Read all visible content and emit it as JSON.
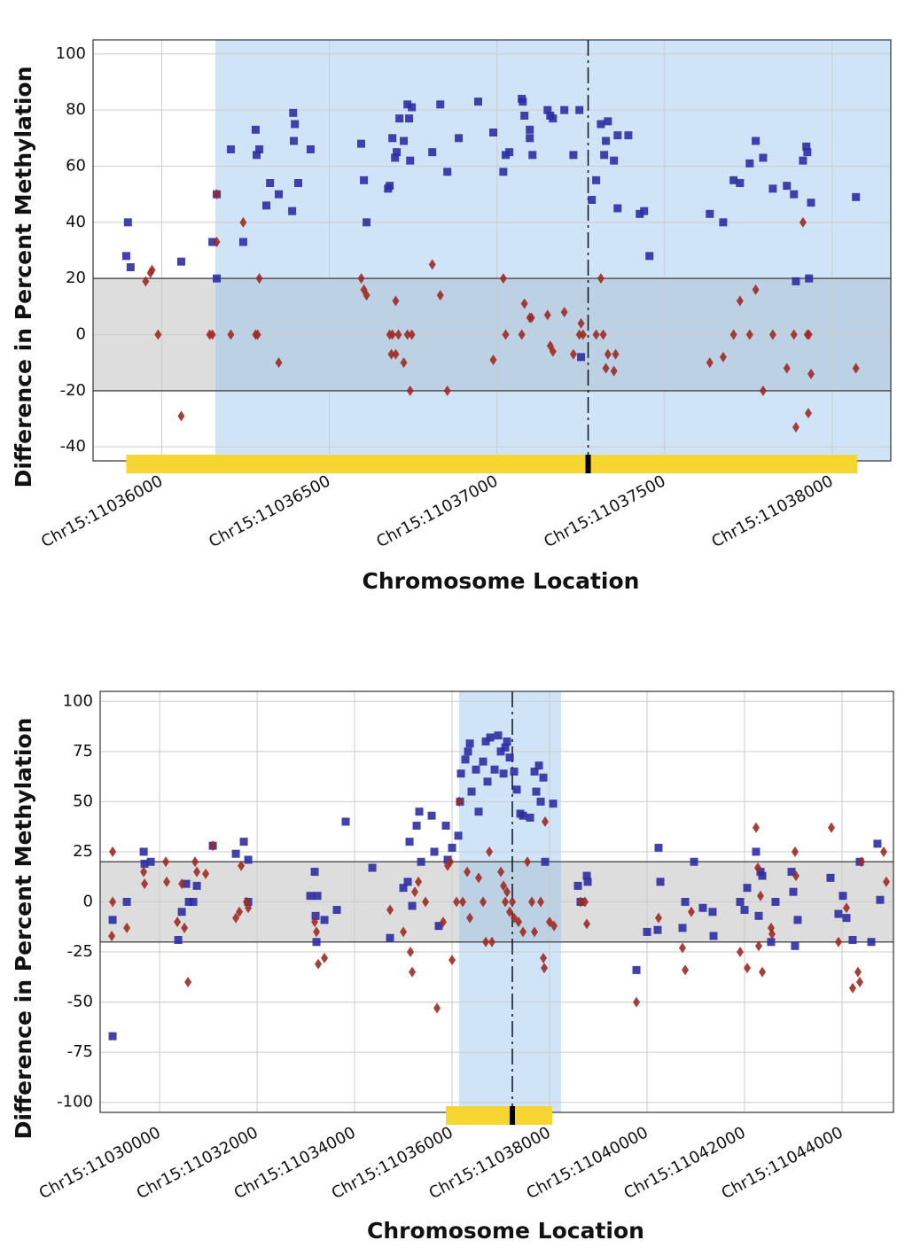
{
  "chart_data": [
    {
      "type": "scatter",
      "x_label": "Chromosome Location",
      "y_label": "Difference in Percent Methylation",
      "xlim": [
        11035795,
        11038175
      ],
      "ylim": [
        -45,
        105
      ],
      "xticks": [
        {
          "value": 11036000,
          "label": "Chr15:11036000"
        },
        {
          "value": 11036500,
          "label": "Chr15:11036500"
        },
        {
          "value": 11037000,
          "label": "Chr15:11037000"
        },
        {
          "value": 11037500,
          "label": "Chr15:11037500"
        },
        {
          "value": 11038000,
          "label": "Chr15:11038000"
        }
      ],
      "yticks": [
        -40,
        -20,
        0,
        20,
        40,
        60,
        80,
        100
      ],
      "grid": true,
      "highlight_xrange": [
        11036160,
        11038175
      ],
      "band_ylim": [
        -20,
        20
      ],
      "marker_x": 11037272,
      "gene_xrange": [
        11035894,
        11038075
      ],
      "series": [
        {
          "color": "#2e2ea3",
          "marker": "square",
          "x": [
            11035899,
            11035894,
            11035907,
            11036058,
            11036151,
            11036164,
            11036164,
            11036206,
            11036243,
            11036280,
            11036283,
            11036291,
            11036312,
            11036323,
            11036349,
            11036389,
            11036392,
            11036397,
            11036394,
            11036407,
            11036444,
            11036595,
            11036603,
            11036611,
            11036675,
            11036680,
            11036688,
            11036696,
            11036701,
            11036709,
            11036722,
            11036733,
            11036741,
            11036746,
            11036738,
            11036807,
            11036831,
            11036852,
            11036886,
            11036944,
            11036989,
            11037019,
            11037026,
            11037037,
            11037074,
            11037077,
            11037082,
            11037098,
            11037098,
            11037106,
            11037151,
            11037159,
            11037167,
            11037201,
            11037228,
            11037246,
            11037283,
            11037296,
            11037310,
            11037320,
            11037331,
            11037325,
            11037349,
            11037360,
            11037360,
            11037392,
            11037426,
            11037439,
            11037455,
            11037635,
            11037675,
            11037706,
            11037725,
            11037754,
            11037772,
            11037794,
            11037823,
            11037865,
            11037886,
            11037892,
            11037913,
            11037923,
            11037926,
            11037931,
            11037937,
            11038071,
            11037251
          ],
          "values": [
            40,
            28,
            24,
            26,
            33,
            50,
            20,
            66,
            33,
            73,
            64,
            66,
            46,
            54,
            50,
            44,
            79,
            75,
            69,
            54,
            66,
            68,
            55,
            40,
            52,
            53,
            70,
            63,
            65,
            77,
            69,
            82,
            62,
            81,
            77,
            65,
            82,
            58,
            70,
            83,
            72,
            58,
            64,
            65,
            84,
            83,
            78,
            73,
            70,
            64,
            80,
            78,
            77,
            80,
            64,
            80,
            48,
            55,
            75,
            64,
            76,
            69,
            62,
            71,
            45,
            71,
            43,
            44,
            28,
            43,
            40,
            55,
            54,
            61,
            69,
            63,
            52,
            53,
            50,
            19,
            62,
            67,
            65,
            20,
            47,
            49,
            -8
          ]
        },
        {
          "color": "#9e2a22",
          "marker": "diamond",
          "x": [
            11035952,
            11035966,
            11035971,
            11035989,
            11036058,
            11036143,
            11036151,
            11036164,
            11036164,
            11036206,
            11036243,
            11036280,
            11036286,
            11036291,
            11036349,
            11036595,
            11036603,
            11036611,
            11036680,
            11036685,
            11036688,
            11036698,
            11036698,
            11036706,
            11036722,
            11036733,
            11036741,
            11036746,
            11036807,
            11036831,
            11036852,
            11036989,
            11037019,
            11037026,
            11037074,
            11037082,
            11037098,
            11037103,
            11037151,
            11037159,
            11037167,
            11037201,
            11037228,
            11037246,
            11037251,
            11037257,
            11037296,
            11037310,
            11037317,
            11037325,
            11037331,
            11037349,
            11037354,
            11037635,
            11037675,
            11037706,
            11037725,
            11037754,
            11037772,
            11037794,
            11037823,
            11037865,
            11037886,
            11037892,
            11037913,
            11037926,
            11037929,
            11037931,
            11037937,
            11038071
          ],
          "values": [
            19,
            22,
            23,
            0,
            -29,
            0,
            0,
            33,
            50,
            0,
            40,
            0,
            0,
            20,
            -10,
            20,
            16,
            14,
            0,
            -7,
            0,
            12,
            -7,
            0,
            -10,
            0,
            -20,
            0,
            25,
            14,
            -20,
            -9,
            20,
            0,
            0,
            11,
            6,
            6,
            7,
            -4,
            -6,
            8,
            -7,
            0,
            4,
            0,
            0,
            20,
            0,
            -12,
            -7,
            -13,
            -7,
            -10,
            -8,
            0,
            12,
            0,
            16,
            -20,
            0,
            -12,
            0,
            -33,
            40,
            0,
            -28,
            0,
            -14,
            -12
          ]
        }
      ]
    },
    {
      "type": "scatter",
      "x_label": "Chromosome Location",
      "y_label": "Difference in Percent Methylation",
      "xlim": [
        11028780,
        11045055
      ],
      "ylim": [
        -105,
        105
      ],
      "xticks": [
        {
          "value": 11030000,
          "label": "Chr15:11030000"
        },
        {
          "value": 11032000,
          "label": "Chr15:11032000"
        },
        {
          "value": 11034000,
          "label": "Chr15:11034000"
        },
        {
          "value": 11036000,
          "label": "Chr15:11036000"
        },
        {
          "value": 11038000,
          "label": "Chr15:11038000"
        },
        {
          "value": 11040000,
          "label": "Chr15:11040000"
        },
        {
          "value": 11042000,
          "label": "Chr15:11042000"
        },
        {
          "value": 11044000,
          "label": "Chr15:11044000"
        }
      ],
      "yticks": [
        -100,
        -75,
        -50,
        -25,
        0,
        25,
        50,
        75,
        100
      ],
      "grid": true,
      "highlight_xrange": [
        11036145,
        11038236
      ],
      "band_ylim": [
        -20,
        20
      ],
      "marker_x": 11037236,
      "gene_xrange": [
        11035873,
        11038055
      ],
      "series": [
        {
          "color": "#2e2ea3",
          "marker": "square",
          "x": [
            11029036,
            11029036,
            11029327,
            11029673,
            11029691,
            11029818,
            11030545,
            11030455,
            11030382,
            11030600,
            11030691,
            11030764,
            11031091,
            11031564,
            11031727,
            11031818,
            11031818,
            11033091,
            11033182,
            11033200,
            11033218,
            11033236,
            11033382,
            11033636,
            11033818,
            11034364,
            11034727,
            11035000,
            11035091,
            11035127,
            11035182,
            11035273,
            11035327,
            11035364,
            11035582,
            11035636,
            11035727,
            11035873,
            11035909,
            11036000,
            11036127,
            11036164,
            11036182,
            11036273,
            11036327,
            11036364,
            11036400,
            11036491,
            11036545,
            11036636,
            11036691,
            11036727,
            11036782,
            11036873,
            11036945,
            11037000,
            11037055,
            11037091,
            11037127,
            11037182,
            11037273,
            11037327,
            11037400,
            11037455,
            11037600,
            11037691,
            11037727,
            11037782,
            11037818,
            11037873,
            11037909,
            11038073,
            11038582,
            11038636,
            11038764,
            11038782,
            11039782,
            11040000,
            11040218,
            11040236,
            11040273,
            11040727,
            11040782,
            11040964,
            11041145,
            11041345,
            11041364,
            11041909,
            11042000,
            11042055,
            11042236,
            11042291,
            11042327,
            11042364,
            11042545,
            11042636,
            11042964,
            11043000,
            11043036,
            11043091,
            11043764,
            11043927,
            11044018,
            11044091,
            11044218,
            11044364,
            11044600,
            11044727,
            11044782
          ],
          "values": [
            -9,
            -67,
            0,
            25,
            19,
            20,
            9,
            -5,
            -19,
            0,
            0,
            8,
            28,
            24,
            30,
            21,
            0,
            3,
            15,
            -7,
            -20,
            3,
            -9,
            -4,
            40,
            17,
            -18,
            7,
            10,
            30,
            -2,
            38,
            45,
            20,
            43,
            25,
            -12,
            38,
            21,
            27,
            33,
            50,
            64,
            71,
            75,
            79,
            55,
            66,
            45,
            70,
            80,
            60,
            82,
            66,
            83,
            75,
            64,
            77,
            80,
            72,
            65,
            56,
            44,
            43,
            42,
            65,
            55,
            68,
            50,
            62,
            20,
            49,
            8,
            0,
            13,
            10,
            -34,
            -15,
            -14,
            27,
            10,
            -13,
            0,
            20,
            -3,
            -5,
            -17,
            0,
            -4,
            7,
            25,
            -7,
            15,
            13,
            -20,
            0,
            15,
            5,
            -22,
            -9,
            12,
            -6,
            3,
            -8,
            -19,
            20,
            -20,
            29,
            1
          ]
        },
        {
          "color": "#9e2a22",
          "marker": "diamond",
          "x": [
            11029036,
            11029018,
            11029036,
            11029327,
            11029673,
            11029691,
            11030127,
            11030145,
            11030364,
            11030455,
            11030509,
            11030582,
            11030727,
            11030764,
            11030945,
            11031091,
            11031564,
            11031636,
            11031673,
            11031782,
            11031818,
            11033182,
            11033218,
            11033254,
            11033382,
            11034727,
            11035000,
            11035145,
            11035182,
            11035236,
            11035309,
            11035455,
            11035691,
            11035818,
            11035909,
            11035964,
            11036000,
            11036091,
            11036145,
            11036218,
            11036309,
            11036364,
            11036545,
            11036636,
            11036691,
            11036764,
            11036818,
            11037000,
            11037055,
            11037091,
            11037127,
            11037182,
            11037236,
            11037273,
            11037364,
            11037455,
            11037545,
            11037636,
            11037691,
            11037818,
            11037873,
            11037891,
            11037909,
            11038000,
            11038091,
            11038636,
            11038727,
            11038764,
            11039782,
            11040236,
            11040727,
            11040782,
            11040909,
            11041909,
            11042055,
            11042236,
            11042273,
            11042291,
            11042327,
            11042364,
            11042545,
            11042564,
            11043036,
            11043055,
            11043782,
            11043927,
            11044091,
            11044218,
            11044327,
            11044364,
            11044400,
            11044855,
            11044909
          ],
          "values": [
            25,
            -17,
            0,
            -13,
            15,
            9,
            20,
            10,
            -10,
            9,
            -13,
            -40,
            20,
            15,
            14,
            28,
            -8,
            -5,
            18,
            0,
            -3,
            -10,
            -15,
            -31,
            -28,
            -4,
            -15,
            -25,
            -35,
            5,
            10,
            0,
            -53,
            -10,
            18,
            20,
            -29,
            0,
            50,
            0,
            15,
            -8,
            12,
            0,
            -20,
            25,
            -20,
            15,
            8,
            0,
            5,
            -5,
            0,
            -8,
            -10,
            -15,
            20,
            0,
            -15,
            0,
            -28,
            -33,
            40,
            -10,
            -12,
            0,
            0,
            -11,
            -50,
            -8,
            -23,
            -34,
            -5,
            -25,
            -33,
            37,
            17,
            -22,
            3,
            -35,
            -13,
            -16,
            25,
            13,
            37,
            -20,
            -3,
            -43,
            -35,
            -40,
            20,
            25,
            10
          ]
        }
      ]
    }
  ]
}
